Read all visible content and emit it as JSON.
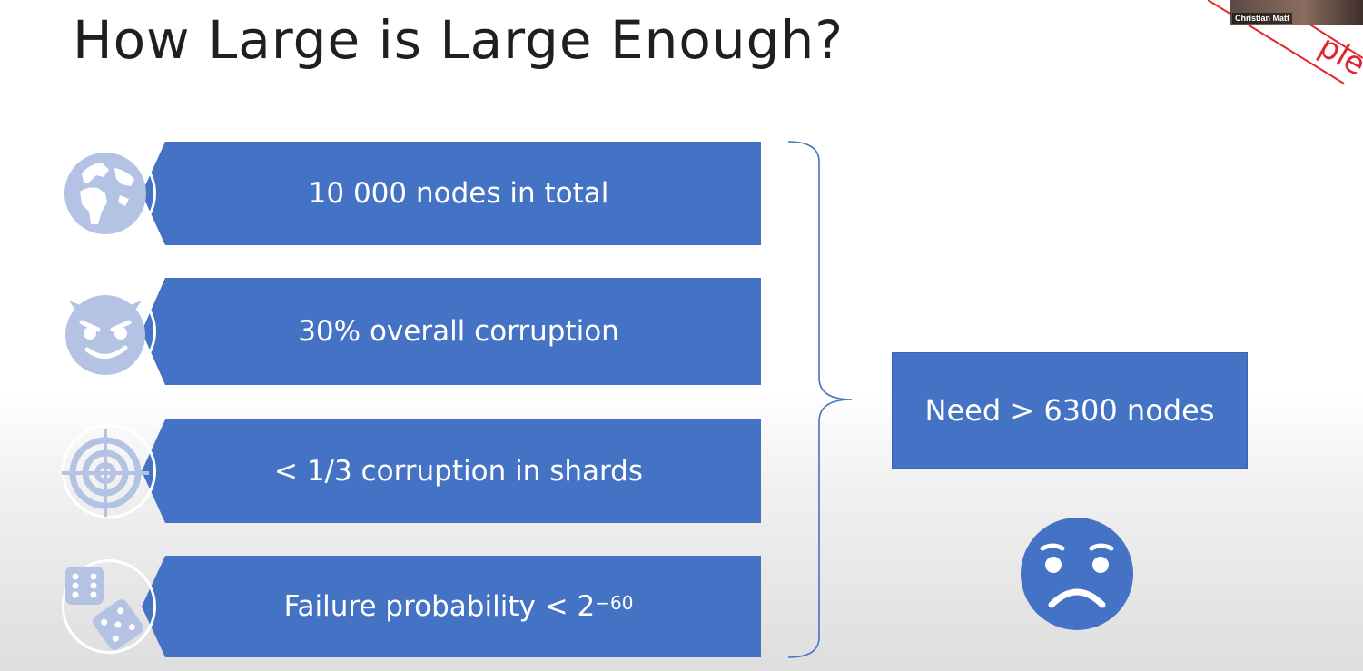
{
  "slide": {
    "title": "How Large is Large Enough?",
    "items": [
      {
        "text": "10 000 nodes in total",
        "icon": "globe-icon"
      },
      {
        "text": "30% overall corruption",
        "icon": "devil-face-icon"
      },
      {
        "text": "< 1/3 corruption in shards",
        "icon": "crosshair-icon"
      },
      {
        "text_before": "Failure probability < 2",
        "exponent": "−60",
        "icon": "dice-icon"
      }
    ],
    "result": "Need > 6300 nodes",
    "reaction_icon": "worried-face-icon"
  },
  "overlay": {
    "stamp_text": "ple",
    "webcam_name": "Christian Matt"
  },
  "colors": {
    "banner": "#4472c4",
    "icon": "#b4c2e4",
    "bracket": "#4472c4",
    "stamp": "#e0262d"
  }
}
